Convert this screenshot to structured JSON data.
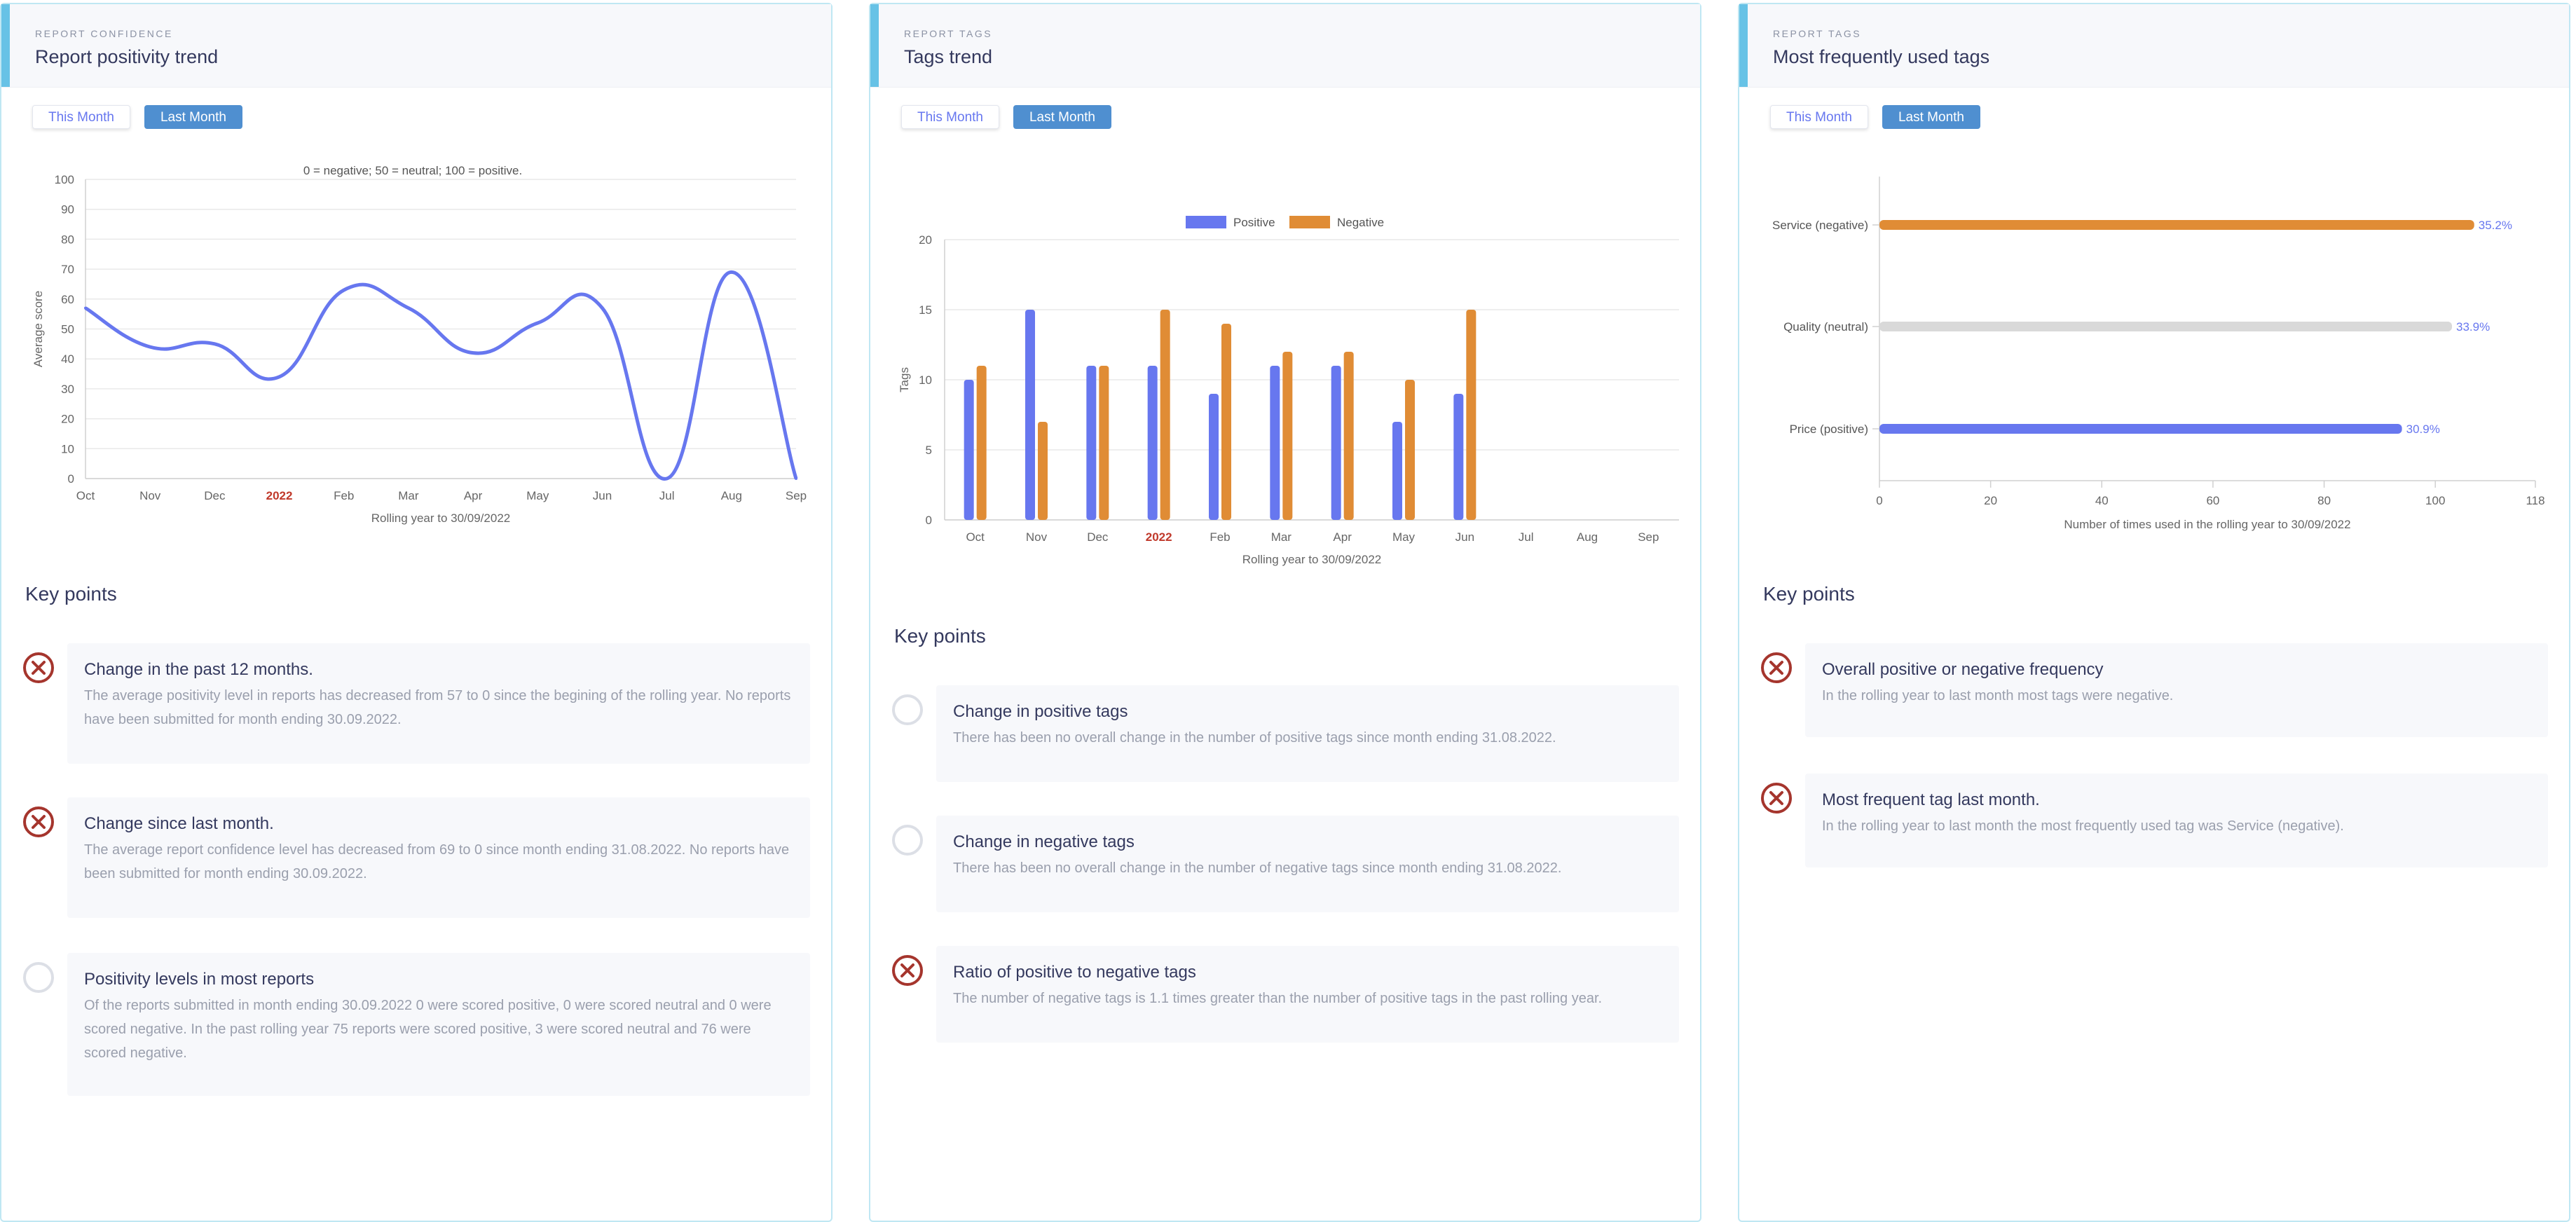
{
  "panels": [
    {
      "kicker": "REPORT CONFIDENCE",
      "title": "Report positivity trend",
      "buttons": [
        "This Month",
        "Last Month"
      ],
      "chart_note": "0 = negative; 50 = neutral; 100 = positive.",
      "key_points_title": "Key points",
      "key_points": [
        {
          "status": "negative",
          "title": "Change in the past 12 months.",
          "text": "The average positivity level in reports has decreased from 57 to 0 since the begining of the rolling year. No reports have been submitted for month ending 30.09.2022."
        },
        {
          "status": "negative",
          "title": "Change since last month.",
          "text": "The average report confidence level has decreased from 69 to 0 since month ending 31.08.2022. No reports have been submitted for month ending 30.09.2022."
        },
        {
          "status": "neutral",
          "title": "Positivity levels in most reports",
          "text": "Of the reports submitted in month ending 30.09.2022 0 were scored positive, 0 were scored neutral and 0 were scored negative. In the past rolling year 75 reports were scored positive, 3 were scored neutral and 76 were scored negative."
        }
      ]
    },
    {
      "kicker": "REPORT TAGS",
      "title": "Tags trend",
      "buttons": [
        "This Month",
        "Last Month"
      ],
      "key_points_title": "Key points",
      "key_points": [
        {
          "status": "neutral",
          "title": "Change in positive tags",
          "text": "There has been no overall change in the number of positive tags since month ending 31.08.2022."
        },
        {
          "status": "neutral",
          "title": "Change in negative tags",
          "text": "There has been no overall change in the number of negative tags since month ending 31.08.2022."
        },
        {
          "status": "negative",
          "title": "Ratio of positive to negative tags",
          "text": "The number of negative tags is 1.1 times greater than the number of positive tags in the past rolling year."
        }
      ]
    },
    {
      "kicker": "REPORT TAGS",
      "title": "Most frequently used tags",
      "buttons": [
        "This Month",
        "Last Month"
      ],
      "key_points_title": "Key points",
      "key_points": [
        {
          "status": "negative",
          "title": "Overall positive or negative frequency",
          "text": "In the rolling year to last month most tags were negative."
        },
        {
          "status": "negative",
          "title": "Most frequent tag last month.",
          "text": "In the rolling year to last month the most frequently used tag was Service (negative)."
        }
      ]
    }
  ],
  "colors": {
    "positive": "#6777ef",
    "negative": "#e08c35",
    "neutral": "#d9d9d9",
    "bad_icon": "#a5352d",
    "highlight_tick": "#c0392b"
  },
  "chart_data": [
    {
      "type": "line",
      "title": "",
      "subtitle": "0 = negative; 50 = neutral; 100 = positive.",
      "xlabel": "Rolling year to 30/09/2022",
      "ylabel": "Average score",
      "ylim": [
        0,
        100
      ],
      "categories": [
        "Oct",
        "Nov",
        "Dec",
        "2022",
        "Feb",
        "Mar",
        "Apr",
        "May",
        "Jun",
        "Jul",
        "Aug",
        "Sep"
      ],
      "yticks": [
        "0",
        "10",
        "20",
        "30",
        "40",
        "50",
        "60",
        "70",
        "80",
        "90",
        "100"
      ],
      "series": [
        {
          "values": [
            57,
            44,
            45,
            34,
            63,
            57,
            42,
            52,
            57,
            0,
            69,
            0
          ]
        }
      ]
    },
    {
      "type": "bar",
      "xlabel": "Rolling year to 30/09/2022",
      "ylabel": "Tags",
      "ylim": [
        0,
        20
      ],
      "legend": "top",
      "categories": [
        "Oct",
        "Nov",
        "Dec",
        "2022",
        "Feb",
        "Mar",
        "Apr",
        "May",
        "Jun",
        "Jul",
        "Aug",
        "Sep"
      ],
      "yticks": [
        "0",
        "5",
        "10",
        "15",
        "20"
      ],
      "series": [
        {
          "name": "Positive",
          "values": [
            10,
            15,
            11,
            11,
            9,
            11,
            11,
            7,
            9,
            0,
            0,
            0
          ]
        },
        {
          "name": "Negative",
          "values": [
            11,
            7,
            11,
            15,
            14,
            12,
            12,
            10,
            15,
            0,
            0,
            0
          ]
        }
      ]
    },
    {
      "type": "bar",
      "orientation": "horizontal",
      "xlabel": "Number of times used in the rolling year to 30/09/2022",
      "xlim": [
        0,
        118
      ],
      "xticks": [
        "0",
        "20",
        "40",
        "60",
        "80",
        "100",
        "118"
      ],
      "categories": [
        "Service (negative)",
        "Quality (neutral)",
        "Price (positive)"
      ],
      "values": [
        107,
        103,
        94
      ],
      "data_labels": [
        "35.2%",
        "33.9%",
        "30.9%"
      ]
    }
  ]
}
